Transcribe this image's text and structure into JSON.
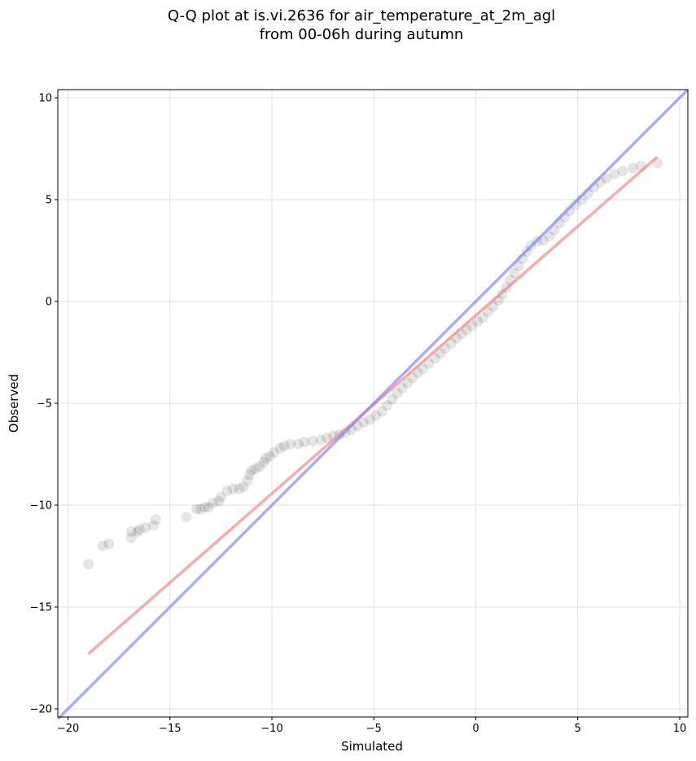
{
  "chart_data": {
    "type": "scatter",
    "title_line1": "Q-Q plot at is.vi.2636 for air_temperature_at_2m_agl",
    "title_line2": "from 00-06h during autumn",
    "xlabel": "Simulated",
    "ylabel": "Observed",
    "xlim": [
      -20.5,
      10.4
    ],
    "ylim": [
      -20.4,
      10.4
    ],
    "xticks": [
      -20,
      -15,
      -10,
      -5,
      0,
      5,
      10
    ],
    "yticks": [
      -20,
      -15,
      -10,
      -5,
      0,
      5,
      10
    ],
    "xtick_labels": [
      "−20",
      "−15",
      "−10",
      "−5",
      "0",
      "5",
      "10"
    ],
    "ytick_labels": [
      "−20",
      "−15",
      "−10",
      "−5",
      "0",
      "5",
      "10"
    ],
    "grid": true,
    "series": [
      {
        "kind": "points",
        "color": "#000000",
        "points": [
          [
            -19.0,
            -12.9
          ],
          [
            -18.3,
            -12.0
          ],
          [
            -18.0,
            -11.9
          ],
          [
            -16.9,
            -11.6
          ],
          [
            -16.9,
            -11.3
          ],
          [
            -16.6,
            -11.3
          ],
          [
            -16.5,
            -11.2
          ],
          [
            -16.2,
            -11.1
          ],
          [
            -15.8,
            -11.0
          ],
          [
            -15.7,
            -10.7
          ],
          [
            -14.2,
            -10.6
          ],
          [
            -13.7,
            -10.2
          ],
          [
            -13.5,
            -10.2
          ],
          [
            -13.3,
            -10.1
          ],
          [
            -13.1,
            -10.1
          ],
          [
            -12.9,
            -9.9
          ],
          [
            -12.6,
            -9.8
          ],
          [
            -12.5,
            -9.6
          ],
          [
            -12.2,
            -9.3
          ],
          [
            -11.9,
            -9.2
          ],
          [
            -11.6,
            -9.2
          ],
          [
            -11.4,
            -9.1
          ],
          [
            -11.2,
            -8.8
          ],
          [
            -11.1,
            -8.5
          ],
          [
            -11.0,
            -8.3
          ],
          [
            -10.8,
            -8.2
          ],
          [
            -10.6,
            -8.1
          ],
          [
            -10.4,
            -7.9
          ],
          [
            -10.3,
            -7.7
          ],
          [
            -10.1,
            -7.6
          ],
          [
            -9.9,
            -7.4
          ],
          [
            -9.6,
            -7.2
          ],
          [
            -9.4,
            -7.1
          ],
          [
            -9.1,
            -7.0
          ],
          [
            -8.7,
            -7.0
          ],
          [
            -8.4,
            -6.9
          ],
          [
            -8.0,
            -6.85
          ],
          [
            -7.6,
            -6.8
          ],
          [
            -7.3,
            -6.7
          ],
          [
            -7.0,
            -6.6
          ],
          [
            -6.7,
            -6.55
          ],
          [
            -6.4,
            -6.45
          ],
          [
            -6.1,
            -6.3
          ],
          [
            -5.8,
            -6.1
          ],
          [
            -5.5,
            -5.95
          ],
          [
            -5.2,
            -5.8
          ],
          [
            -4.9,
            -5.6
          ],
          [
            -4.6,
            -5.4
          ],
          [
            -4.35,
            -5.1
          ],
          [
            -4.1,
            -4.8
          ],
          [
            -3.85,
            -4.5
          ],
          [
            -3.6,
            -4.25
          ],
          [
            -3.35,
            -4.0
          ],
          [
            -3.1,
            -3.75
          ],
          [
            -2.85,
            -3.5
          ],
          [
            -2.6,
            -3.3
          ],
          [
            -2.3,
            -3.05
          ],
          [
            -2.0,
            -2.8
          ],
          [
            -1.75,
            -2.55
          ],
          [
            -1.5,
            -2.3
          ],
          [
            -1.2,
            -2.05
          ],
          [
            -0.95,
            -1.8
          ],
          [
            -0.7,
            -1.6
          ],
          [
            -0.45,
            -1.4
          ],
          [
            -0.2,
            -1.2
          ],
          [
            0.1,
            -1.0
          ],
          [
            0.35,
            -0.8
          ],
          [
            0.6,
            -0.5
          ],
          [
            0.85,
            -0.25
          ],
          [
            1.1,
            0.05
          ],
          [
            1.3,
            0.35
          ],
          [
            1.5,
            0.7
          ],
          [
            1.7,
            1.05
          ],
          [
            1.9,
            1.4
          ],
          [
            2.1,
            1.75
          ],
          [
            2.3,
            2.1
          ],
          [
            2.5,
            2.45
          ],
          [
            2.7,
            2.75
          ],
          [
            3.0,
            2.95
          ],
          [
            3.3,
            3.0
          ],
          [
            3.6,
            3.2
          ],
          [
            3.85,
            3.5
          ],
          [
            4.1,
            3.85
          ],
          [
            4.35,
            4.15
          ],
          [
            4.6,
            4.45
          ],
          [
            4.9,
            4.75
          ],
          [
            5.2,
            5.0
          ],
          [
            5.5,
            5.3
          ],
          [
            5.8,
            5.6
          ],
          [
            6.1,
            5.85
          ],
          [
            6.4,
            6.05
          ],
          [
            6.8,
            6.25
          ],
          [
            7.2,
            6.4
          ],
          [
            7.7,
            6.55
          ],
          [
            8.1,
            6.65
          ],
          [
            8.9,
            6.8
          ]
        ]
      },
      {
        "kind": "line",
        "color": "#f08080",
        "points": [
          [
            -19.0,
            -17.3
          ],
          [
            8.9,
            7.1
          ]
        ]
      },
      {
        "kind": "line",
        "color": "#8080f0",
        "points": [
          [
            -20.5,
            -20.5
          ],
          [
            10.4,
            10.4
          ]
        ]
      }
    ]
  }
}
